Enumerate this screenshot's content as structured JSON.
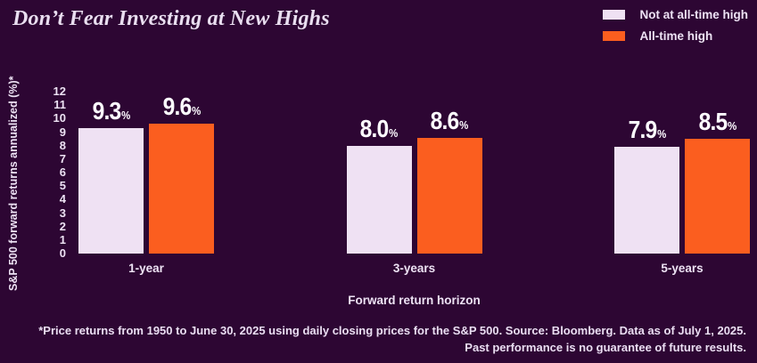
{
  "title": "Don’t Fear Investing at New Highs",
  "colors": {
    "background": "#2D0633",
    "bar_not_ath": "#EFE1F3",
    "bar_ath": "#FB5E1F",
    "text": "#EDE2F4",
    "data_label": "#FDFBFF"
  },
  "legend": [
    {
      "label": "Not at all-time high",
      "color": "#EFE1F3"
    },
    {
      "label": "All-time high",
      "color": "#FB5E1F"
    }
  ],
  "chart_data": {
    "type": "bar",
    "categories": [
      "1-year",
      "3-years",
      "5-years"
    ],
    "series": [
      {
        "name": "Not at all-time high",
        "values": [
          9.3,
          8.0,
          7.9
        ],
        "color": "#EFE1F3"
      },
      {
        "name": "All-time high",
        "values": [
          9.6,
          8.6,
          8.5
        ],
        "color": "#FB5E1F"
      }
    ],
    "data_labels": [
      "9.3%",
      "9.6%",
      "8.0%",
      "8.6%",
      "7.9%",
      "8.5%"
    ],
    "value_suffix": "%",
    "ylabel": "S&P 500 forward returns annualized (%)*",
    "xlabel": "Forward return horizon",
    "ylim": [
      0,
      12
    ],
    "yticks": [
      0,
      1,
      2,
      3,
      4,
      5,
      6,
      7,
      8,
      9,
      10,
      11,
      12
    ],
    "grid": false,
    "legend_position": "top-right"
  },
  "footnote": {
    "line1": "*Price returns from 1950 to June 30, 2025 using daily closing prices for the S&P 500. Source: Bloomberg. Data as of July 1, 2025.",
    "line2": "Past performance is no guarantee of future results."
  }
}
